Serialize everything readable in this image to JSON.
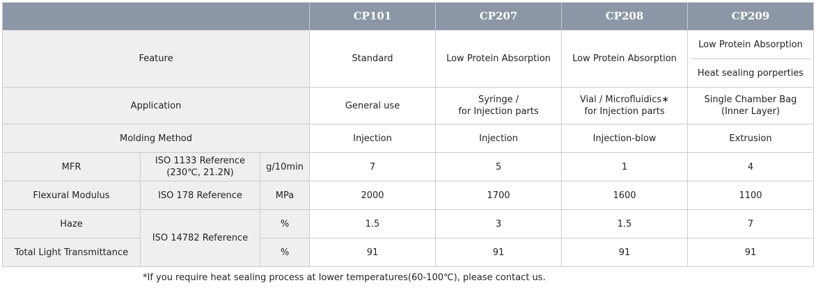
{
  "headers": [
    "",
    "CP101",
    "CP207",
    "CP208",
    "CP209"
  ],
  "rows": {
    "feature": {
      "label": "Feature",
      "values": [
        "Standard",
        "Low Protein Absorption",
        "Low Protein Absorption"
      ],
      "cp209": [
        "Low Protein Absorption",
        "Heat sealing porperties"
      ]
    },
    "application": {
      "label": "Application",
      "values": [
        [
          "General use"
        ],
        [
          "Syringe /",
          "for Injection parts"
        ],
        [
          "Vial /  Microfluidics∗",
          "for Injection parts"
        ],
        [
          "Single Chamber Bag",
          "(Inner Layer)"
        ]
      ]
    },
    "molding": {
      "label": "Molding Method",
      "values": [
        "Injection",
        "Injection",
        "Injection-blow",
        "Extrusion"
      ]
    },
    "mfr": {
      "label": "MFR",
      "method": [
        "ISO 1133 Reference",
        "(230℃, 21.2N)"
      ],
      "unit": "g/10min",
      "values": [
        "7",
        "5",
        "1",
        "4"
      ]
    },
    "flexural": {
      "label": "Flexural Modulus",
      "method": "ISO 178 Reference",
      "unit": "MPa",
      "values": [
        "2000",
        "1700",
        "1600",
        "1100"
      ]
    },
    "haze": {
      "label": "Haze",
      "method": "ISO 14782 Reference",
      "unit": "%",
      "values": [
        "1.5",
        "3",
        "1.5",
        "7"
      ]
    },
    "transmittance": {
      "label": "Total Light Transmittance",
      "unit": "%",
      "values": [
        "91",
        "91",
        "91",
        "91"
      ]
    }
  },
  "footnote": "*If you require heat sealing process at lower temperatures(60-100℃), please contact us.",
  "colors": {
    "header_bg": "#8b97a6",
    "label_bg": "#efefef",
    "border": "#c9ccd1"
  }
}
